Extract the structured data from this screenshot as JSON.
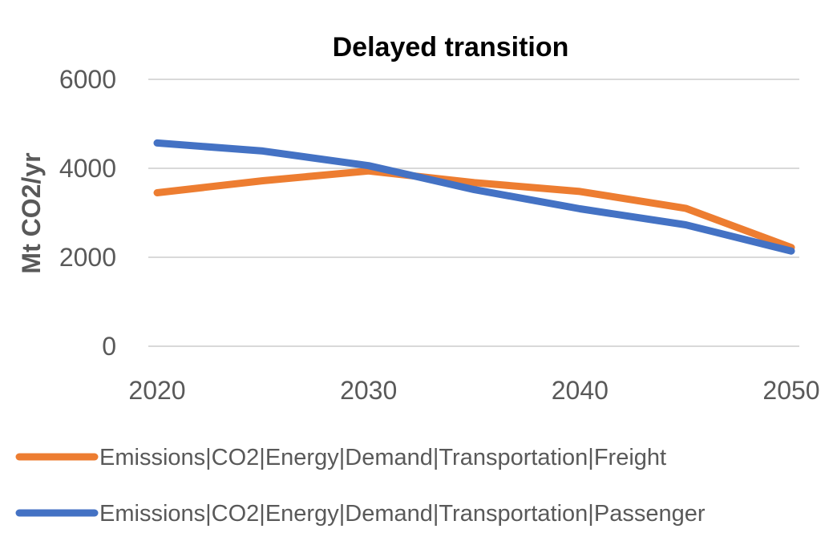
{
  "chart_data": {
    "type": "line",
    "title": "Delayed transition",
    "xlabel": "",
    "ylabel": "Mt CO2/yr",
    "xlim": [
      2020,
      2050
    ],
    "ylim": [
      0,
      6000
    ],
    "xticks": [
      2020,
      2030,
      2040,
      2050
    ],
    "yticks": [
      0,
      2000,
      4000,
      6000
    ],
    "grid": true,
    "legend_position": "bottom",
    "x": [
      2020,
      2025,
      2030,
      2035,
      2040,
      2045,
      2050
    ],
    "series": [
      {
        "name": "Emissions|CO2|Energy|Demand|Transportation|Freight",
        "color": "#ed7d31",
        "values": [
          3450,
          3720,
          3940,
          3680,
          3480,
          3100,
          2220
        ]
      },
      {
        "name": "Emissions|CO2|Energy|Demand|Transportation|Passenger",
        "color": "#4472c4",
        "values": [
          4570,
          4390,
          4060,
          3520,
          3090,
          2730,
          2140
        ]
      }
    ]
  }
}
